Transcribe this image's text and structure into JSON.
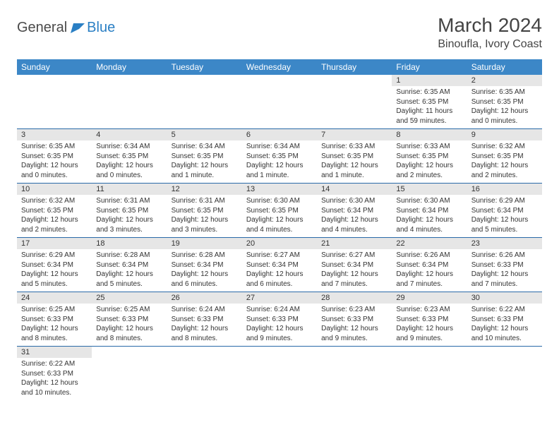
{
  "logo": {
    "general": "General",
    "blue": "Blue"
  },
  "title": "March 2024",
  "location": "Binoufla, Ivory Coast",
  "colors": {
    "header_bg": "#3c87c7",
    "header_text": "#ffffff",
    "daynum_bg": "#e6e6e6",
    "row_border": "#2a6aa8",
    "logo_gray": "#4a4a4a",
    "logo_blue": "#2a7fc4"
  },
  "weekdays": [
    "Sunday",
    "Monday",
    "Tuesday",
    "Wednesday",
    "Thursday",
    "Friday",
    "Saturday"
  ],
  "weeks": [
    [
      {
        "empty": true
      },
      {
        "empty": true
      },
      {
        "empty": true
      },
      {
        "empty": true
      },
      {
        "empty": true
      },
      {
        "num": "1",
        "sunrise": "Sunrise: 6:35 AM",
        "sunset": "Sunset: 6:35 PM",
        "daylight": "Daylight: 11 hours and 59 minutes."
      },
      {
        "num": "2",
        "sunrise": "Sunrise: 6:35 AM",
        "sunset": "Sunset: 6:35 PM",
        "daylight": "Daylight: 12 hours and 0 minutes."
      }
    ],
    [
      {
        "num": "3",
        "sunrise": "Sunrise: 6:35 AM",
        "sunset": "Sunset: 6:35 PM",
        "daylight": "Daylight: 12 hours and 0 minutes."
      },
      {
        "num": "4",
        "sunrise": "Sunrise: 6:34 AM",
        "sunset": "Sunset: 6:35 PM",
        "daylight": "Daylight: 12 hours and 0 minutes."
      },
      {
        "num": "5",
        "sunrise": "Sunrise: 6:34 AM",
        "sunset": "Sunset: 6:35 PM",
        "daylight": "Daylight: 12 hours and 1 minute."
      },
      {
        "num": "6",
        "sunrise": "Sunrise: 6:34 AM",
        "sunset": "Sunset: 6:35 PM",
        "daylight": "Daylight: 12 hours and 1 minute."
      },
      {
        "num": "7",
        "sunrise": "Sunrise: 6:33 AM",
        "sunset": "Sunset: 6:35 PM",
        "daylight": "Daylight: 12 hours and 1 minute."
      },
      {
        "num": "8",
        "sunrise": "Sunrise: 6:33 AM",
        "sunset": "Sunset: 6:35 PM",
        "daylight": "Daylight: 12 hours and 2 minutes."
      },
      {
        "num": "9",
        "sunrise": "Sunrise: 6:32 AM",
        "sunset": "Sunset: 6:35 PM",
        "daylight": "Daylight: 12 hours and 2 minutes."
      }
    ],
    [
      {
        "num": "10",
        "sunrise": "Sunrise: 6:32 AM",
        "sunset": "Sunset: 6:35 PM",
        "daylight": "Daylight: 12 hours and 2 minutes."
      },
      {
        "num": "11",
        "sunrise": "Sunrise: 6:31 AM",
        "sunset": "Sunset: 6:35 PM",
        "daylight": "Daylight: 12 hours and 3 minutes."
      },
      {
        "num": "12",
        "sunrise": "Sunrise: 6:31 AM",
        "sunset": "Sunset: 6:35 PM",
        "daylight": "Daylight: 12 hours and 3 minutes."
      },
      {
        "num": "13",
        "sunrise": "Sunrise: 6:30 AM",
        "sunset": "Sunset: 6:35 PM",
        "daylight": "Daylight: 12 hours and 4 minutes."
      },
      {
        "num": "14",
        "sunrise": "Sunrise: 6:30 AM",
        "sunset": "Sunset: 6:34 PM",
        "daylight": "Daylight: 12 hours and 4 minutes."
      },
      {
        "num": "15",
        "sunrise": "Sunrise: 6:30 AM",
        "sunset": "Sunset: 6:34 PM",
        "daylight": "Daylight: 12 hours and 4 minutes."
      },
      {
        "num": "16",
        "sunrise": "Sunrise: 6:29 AM",
        "sunset": "Sunset: 6:34 PM",
        "daylight": "Daylight: 12 hours and 5 minutes."
      }
    ],
    [
      {
        "num": "17",
        "sunrise": "Sunrise: 6:29 AM",
        "sunset": "Sunset: 6:34 PM",
        "daylight": "Daylight: 12 hours and 5 minutes."
      },
      {
        "num": "18",
        "sunrise": "Sunrise: 6:28 AM",
        "sunset": "Sunset: 6:34 PM",
        "daylight": "Daylight: 12 hours and 5 minutes."
      },
      {
        "num": "19",
        "sunrise": "Sunrise: 6:28 AM",
        "sunset": "Sunset: 6:34 PM",
        "daylight": "Daylight: 12 hours and 6 minutes."
      },
      {
        "num": "20",
        "sunrise": "Sunrise: 6:27 AM",
        "sunset": "Sunset: 6:34 PM",
        "daylight": "Daylight: 12 hours and 6 minutes."
      },
      {
        "num": "21",
        "sunrise": "Sunrise: 6:27 AM",
        "sunset": "Sunset: 6:34 PM",
        "daylight": "Daylight: 12 hours and 7 minutes."
      },
      {
        "num": "22",
        "sunrise": "Sunrise: 6:26 AM",
        "sunset": "Sunset: 6:34 PM",
        "daylight": "Daylight: 12 hours and 7 minutes."
      },
      {
        "num": "23",
        "sunrise": "Sunrise: 6:26 AM",
        "sunset": "Sunset: 6:33 PM",
        "daylight": "Daylight: 12 hours and 7 minutes."
      }
    ],
    [
      {
        "num": "24",
        "sunrise": "Sunrise: 6:25 AM",
        "sunset": "Sunset: 6:33 PM",
        "daylight": "Daylight: 12 hours and 8 minutes."
      },
      {
        "num": "25",
        "sunrise": "Sunrise: 6:25 AM",
        "sunset": "Sunset: 6:33 PM",
        "daylight": "Daylight: 12 hours and 8 minutes."
      },
      {
        "num": "26",
        "sunrise": "Sunrise: 6:24 AM",
        "sunset": "Sunset: 6:33 PM",
        "daylight": "Daylight: 12 hours and 8 minutes."
      },
      {
        "num": "27",
        "sunrise": "Sunrise: 6:24 AM",
        "sunset": "Sunset: 6:33 PM",
        "daylight": "Daylight: 12 hours and 9 minutes."
      },
      {
        "num": "28",
        "sunrise": "Sunrise: 6:23 AM",
        "sunset": "Sunset: 6:33 PM",
        "daylight": "Daylight: 12 hours and 9 minutes."
      },
      {
        "num": "29",
        "sunrise": "Sunrise: 6:23 AM",
        "sunset": "Sunset: 6:33 PM",
        "daylight": "Daylight: 12 hours and 9 minutes."
      },
      {
        "num": "30",
        "sunrise": "Sunrise: 6:22 AM",
        "sunset": "Sunset: 6:33 PM",
        "daylight": "Daylight: 12 hours and 10 minutes."
      }
    ],
    [
      {
        "num": "31",
        "sunrise": "Sunrise: 6:22 AM",
        "sunset": "Sunset: 6:33 PM",
        "daylight": "Daylight: 12 hours and 10 minutes."
      },
      {
        "empty": true
      },
      {
        "empty": true
      },
      {
        "empty": true
      },
      {
        "empty": true
      },
      {
        "empty": true
      },
      {
        "empty": true
      }
    ]
  ]
}
